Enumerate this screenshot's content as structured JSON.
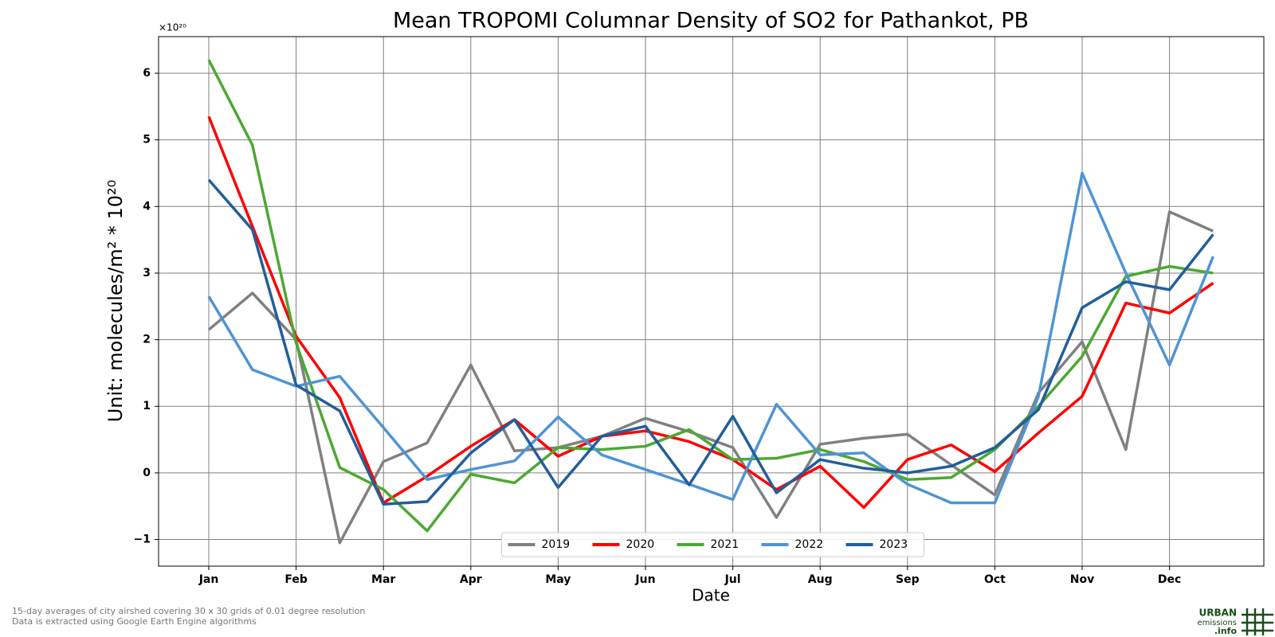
{
  "chart_data": {
    "type": "line",
    "title": "Mean TROPOMI Columnar Density of SO2 for Pathankot, PB",
    "x_label": "Date",
    "y_label": "Unit: molecules/m² * 10²⁰",
    "y_offset_label": "×10²⁰",
    "categories": [
      "Jan",
      null,
      "Feb",
      null,
      "Mar",
      null,
      "Apr",
      null,
      "May",
      null,
      "Jun",
      null,
      "Jul",
      null,
      "Aug",
      null,
      "Sep",
      null,
      "Oct",
      null,
      "Nov",
      null,
      "Dec",
      null
    ],
    "ylim": [
      -1.4,
      6.55
    ],
    "yticks": [
      {
        "value": -1,
        "label": "−1"
      },
      0,
      1,
      2,
      3,
      4,
      5,
      6
    ],
    "grid": true,
    "legend": "lower center",
    "series": [
      {
        "name": "2019",
        "color": "#808080",
        "values": [
          2.15,
          2.7,
          2.0,
          -1.05,
          0.17,
          0.45,
          1.62,
          0.33,
          0.38,
          0.55,
          0.82,
          0.62,
          0.38,
          -0.67,
          0.43,
          0.52,
          0.58,
          0.12,
          -0.33,
          1.2,
          1.97,
          0.35,
          3.92,
          3.63
        ]
      },
      {
        "name": "2020",
        "color": "#ff0000",
        "values": [
          5.35,
          3.7,
          2.05,
          1.13,
          -0.45,
          -0.05,
          0.4,
          0.8,
          0.25,
          0.55,
          0.63,
          0.47,
          0.2,
          -0.25,
          0.1,
          -0.52,
          0.2,
          0.42,
          0.02,
          0.6,
          1.15,
          2.55,
          2.4,
          2.85
        ]
      },
      {
        "name": "2021",
        "color": "#4ca832",
        "values": [
          6.2,
          4.92,
          1.95,
          0.08,
          -0.25,
          -0.87,
          -0.02,
          -0.15,
          0.38,
          0.35,
          0.4,
          0.65,
          0.2,
          0.22,
          0.35,
          0.17,
          -0.1,
          -0.07,
          0.35,
          1.0,
          1.75,
          2.95,
          3.1,
          3.0
        ]
      },
      {
        "name": "2022",
        "color": "#4f94d4",
        "values": [
          2.65,
          1.55,
          1.3,
          1.45,
          0.68,
          -0.1,
          0.05,
          0.18,
          0.84,
          0.27,
          0.05,
          -0.17,
          -0.4,
          1.03,
          0.27,
          0.3,
          -0.17,
          -0.45,
          -0.45,
          1.15,
          4.5,
          3.0,
          1.62,
          3.25
        ]
      },
      {
        "name": "2023",
        "color": "#225e9a",
        "values": [
          4.4,
          3.65,
          1.32,
          0.93,
          -0.47,
          -0.43,
          0.3,
          0.8,
          -0.22,
          0.55,
          0.7,
          -0.18,
          0.85,
          -0.3,
          0.2,
          0.07,
          0.0,
          0.1,
          0.38,
          0.95,
          2.48,
          2.87,
          2.75,
          3.58
        ]
      }
    ]
  },
  "footer": {
    "notes": [
      "15-day averages of city airshed covering 30 x 30 grids of 0.01 degree resolution",
      "Data is extracted using Google Earth Engine algorithms"
    ],
    "logo": [
      "URBAN",
      "emissions",
      ".info"
    ]
  }
}
